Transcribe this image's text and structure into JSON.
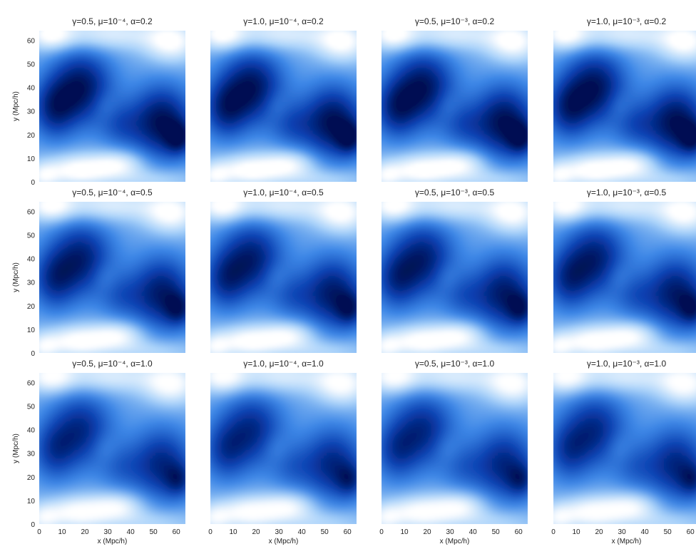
{
  "chart_data": {
    "type": "heatmap",
    "layout": {
      "rows": 3,
      "cols": 4
    },
    "colormap": [
      "#000f52",
      "#0a3fb0",
      "#3c86e6",
      "#a9d2fa",
      "#ffffff"
    ],
    "xlabel": "x (Mpc/h)",
    "ylabel": "y (Mpc/h)",
    "xlim": [
      0,
      64
    ],
    "ylim": [
      0,
      64
    ],
    "xticks": [
      "0",
      "10",
      "20",
      "30",
      "40",
      "50",
      "60"
    ],
    "yticks": [
      "0",
      "10",
      "20",
      "30",
      "40",
      "50",
      "60"
    ],
    "panels": [
      {
        "title": "γ=0.5, μ=10⁻⁴, α=0.2"
      },
      {
        "title": "γ=1.0, μ=10⁻⁴, α=0.2"
      },
      {
        "title": "γ=0.5, μ=10⁻³, α=0.2"
      },
      {
        "title": "γ=1.0, μ=10⁻³, α=0.2"
      },
      {
        "title": "γ=0.5, μ=10⁻⁴, α=0.5"
      },
      {
        "title": "γ=1.0, μ=10⁻⁴, α=0.5"
      },
      {
        "title": "γ=0.5, μ=10⁻³, α=0.5"
      },
      {
        "title": "γ=1.0, μ=10⁻³, α=0.5"
      },
      {
        "title": "γ=0.5, μ=10⁻⁴, α=1.0"
      },
      {
        "title": "γ=1.0, μ=10⁻⁴, α=1.0"
      },
      {
        "title": "γ=0.5, μ=10⁻³, α=1.0"
      },
      {
        "title": "γ=1.0, μ=10⁻³, α=1.0"
      }
    ]
  }
}
